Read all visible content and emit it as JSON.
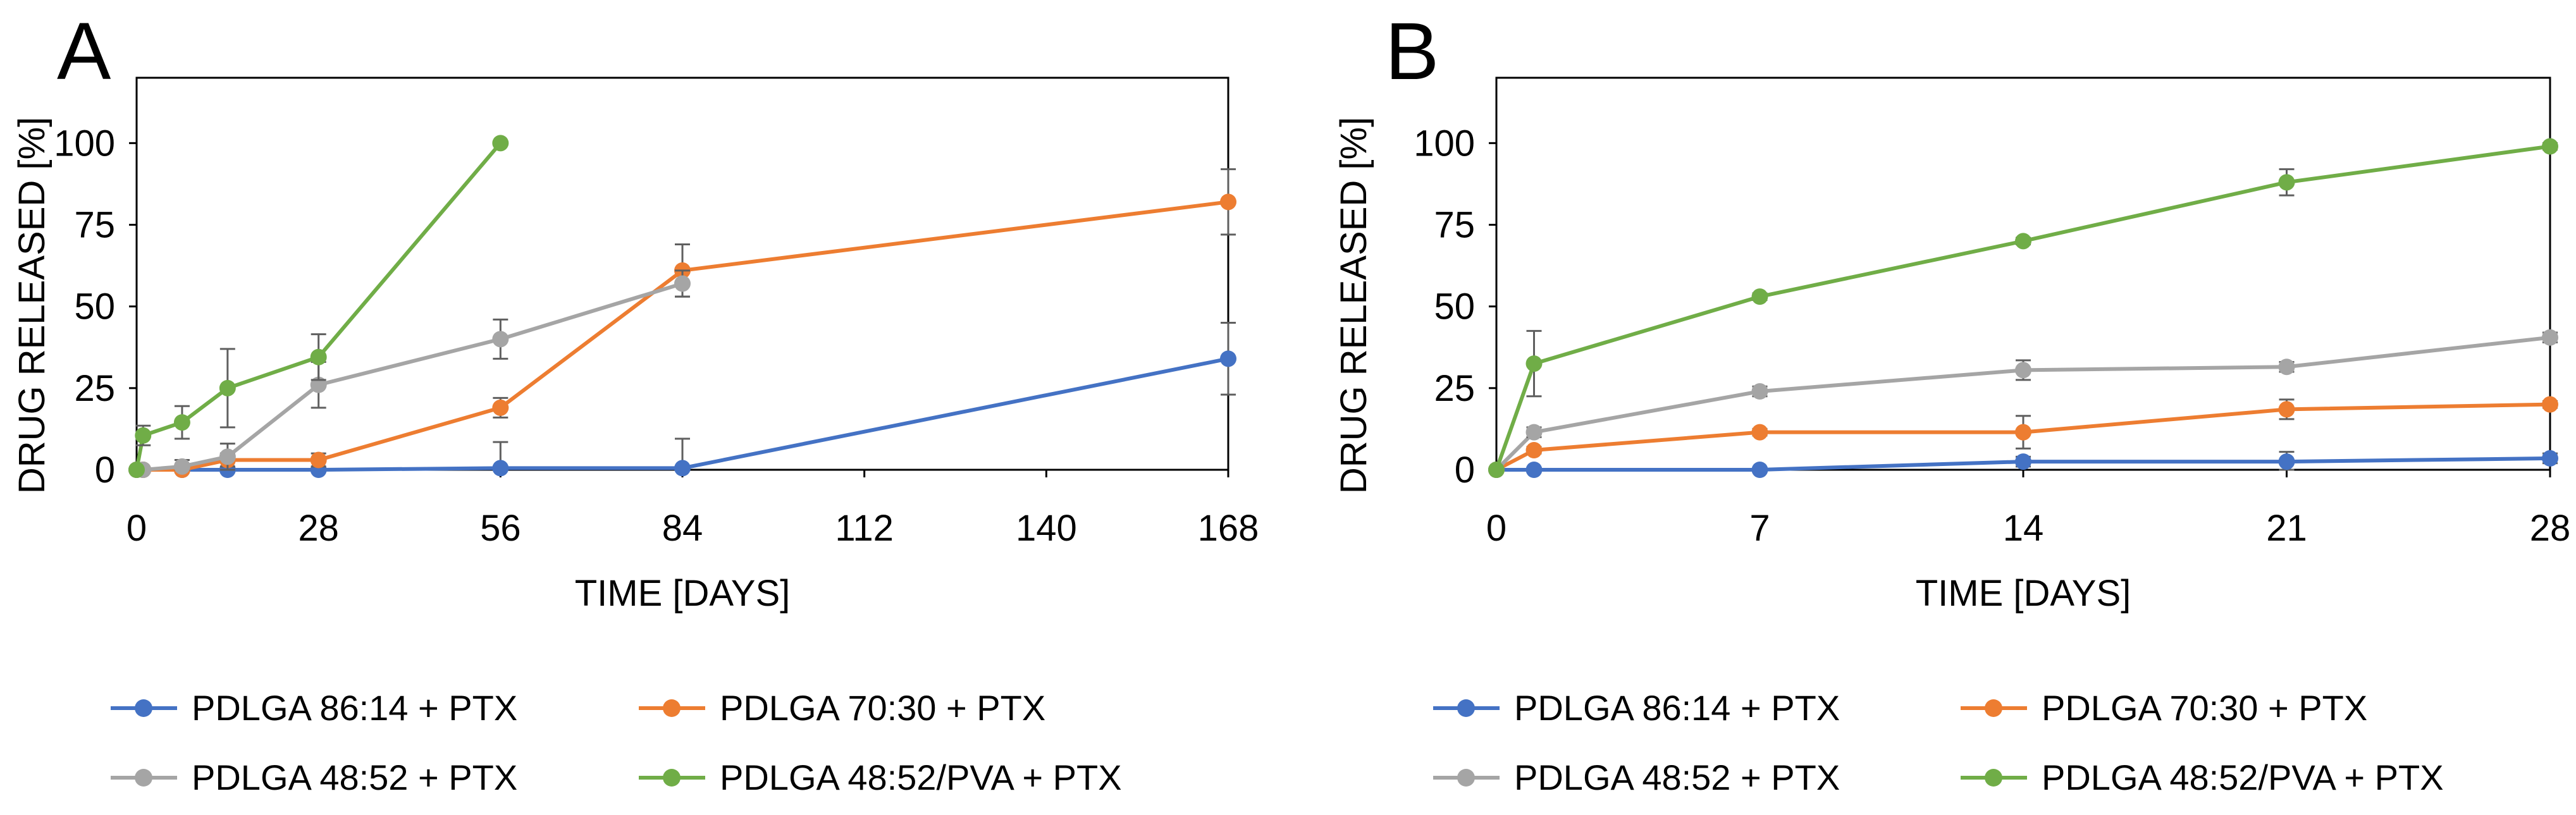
{
  "colors": {
    "PDLGA 86:14 + PTX": "#4472C4",
    "PDLGA 70:30 + PTX": "#ED7D31",
    "PDLGA 48:52 + PTX": "#A5A5A5",
    "PDLGA 48:52/PVA + PTX": "#70AD47",
    "error_bar": "#5F5F5F",
    "axis": "#000000"
  },
  "chart_data": [
    {
      "panel": "A",
      "type": "line",
      "xlabel": "TIME [DAYS]",
      "ylabel": "DRUG RELEASED [%]",
      "xlim": [
        0,
        168
      ],
      "ylim": [
        0,
        120
      ],
      "xticks": [
        0,
        28,
        56,
        84,
        112,
        140,
        168
      ],
      "yticks": [
        0,
        25,
        50,
        75,
        100
      ],
      "series": [
        {
          "name": "PDLGA 86:14 + PTX",
          "x": [
            0,
            1,
            7,
            14,
            28,
            56,
            84,
            168
          ],
          "y": [
            0,
            0,
            0,
            0,
            0,
            0.5,
            0.5,
            34
          ],
          "err": [
            0,
            0,
            0,
            0,
            0,
            8,
            9,
            11
          ]
        },
        {
          "name": "PDLGA 70:30 + PTX",
          "x": [
            0,
            1,
            7,
            14,
            28,
            56,
            84,
            168
          ],
          "y": [
            0,
            0,
            0,
            3,
            3,
            19,
            61,
            82
          ],
          "err": [
            0,
            0,
            0,
            2,
            2,
            3,
            8,
            10
          ]
        },
        {
          "name": "PDLGA 48:52 + PTX",
          "x": [
            0,
            1,
            7,
            14,
            28,
            56,
            84
          ],
          "y": [
            0,
            0,
            1,
            4,
            26,
            40,
            57
          ],
          "err": [
            0,
            0,
            2,
            4,
            7,
            6,
            4
          ]
        },
        {
          "name": "PDLGA 48:52/PVA + PTX",
          "x": [
            0,
            1,
            7,
            14,
            28,
            56
          ],
          "y": [
            0,
            10.5,
            14.5,
            25,
            34.5,
            100
          ],
          "err": [
            0,
            3,
            5,
            12,
            7,
            0
          ]
        }
      ]
    },
    {
      "panel": "B",
      "type": "line",
      "xlabel": "TIME [DAYS]",
      "ylabel": "DRUG RELEASED [%]",
      "xlim": [
        0,
        28
      ],
      "ylim": [
        0,
        120
      ],
      "xticks": [
        0,
        7,
        14,
        21,
        28
      ],
      "yticks": [
        0,
        25,
        50,
        75,
        100
      ],
      "series": [
        {
          "name": "PDLGA 86:14 + PTX",
          "x": [
            0,
            1,
            7,
            14,
            21,
            28
          ],
          "y": [
            0,
            0,
            0,
            2.5,
            2.5,
            3.5
          ],
          "err": [
            0,
            0,
            0,
            1.5,
            3,
            1.5
          ]
        },
        {
          "name": "PDLGA 70:30 + PTX",
          "x": [
            0,
            1,
            7,
            14,
            21,
            28
          ],
          "y": [
            0,
            6,
            11.5,
            11.5,
            18.5,
            20
          ],
          "err": [
            0,
            1,
            1,
            5,
            3,
            1
          ]
        },
        {
          "name": "PDLGA 48:52 + PTX",
          "x": [
            0,
            1,
            7,
            14,
            21,
            28
          ],
          "y": [
            0,
            11.5,
            24,
            30.5,
            31.5,
            40.5
          ],
          "err": [
            0,
            1.5,
            1.5,
            3,
            1.5,
            1.5
          ]
        },
        {
          "name": "PDLGA 48:52/PVA + PTX",
          "x": [
            0,
            1,
            7,
            14,
            21,
            28
          ],
          "y": [
            0,
            32.5,
            53,
            70,
            88,
            99
          ],
          "err": [
            0,
            10,
            1,
            1,
            4,
            1
          ]
        }
      ]
    }
  ]
}
